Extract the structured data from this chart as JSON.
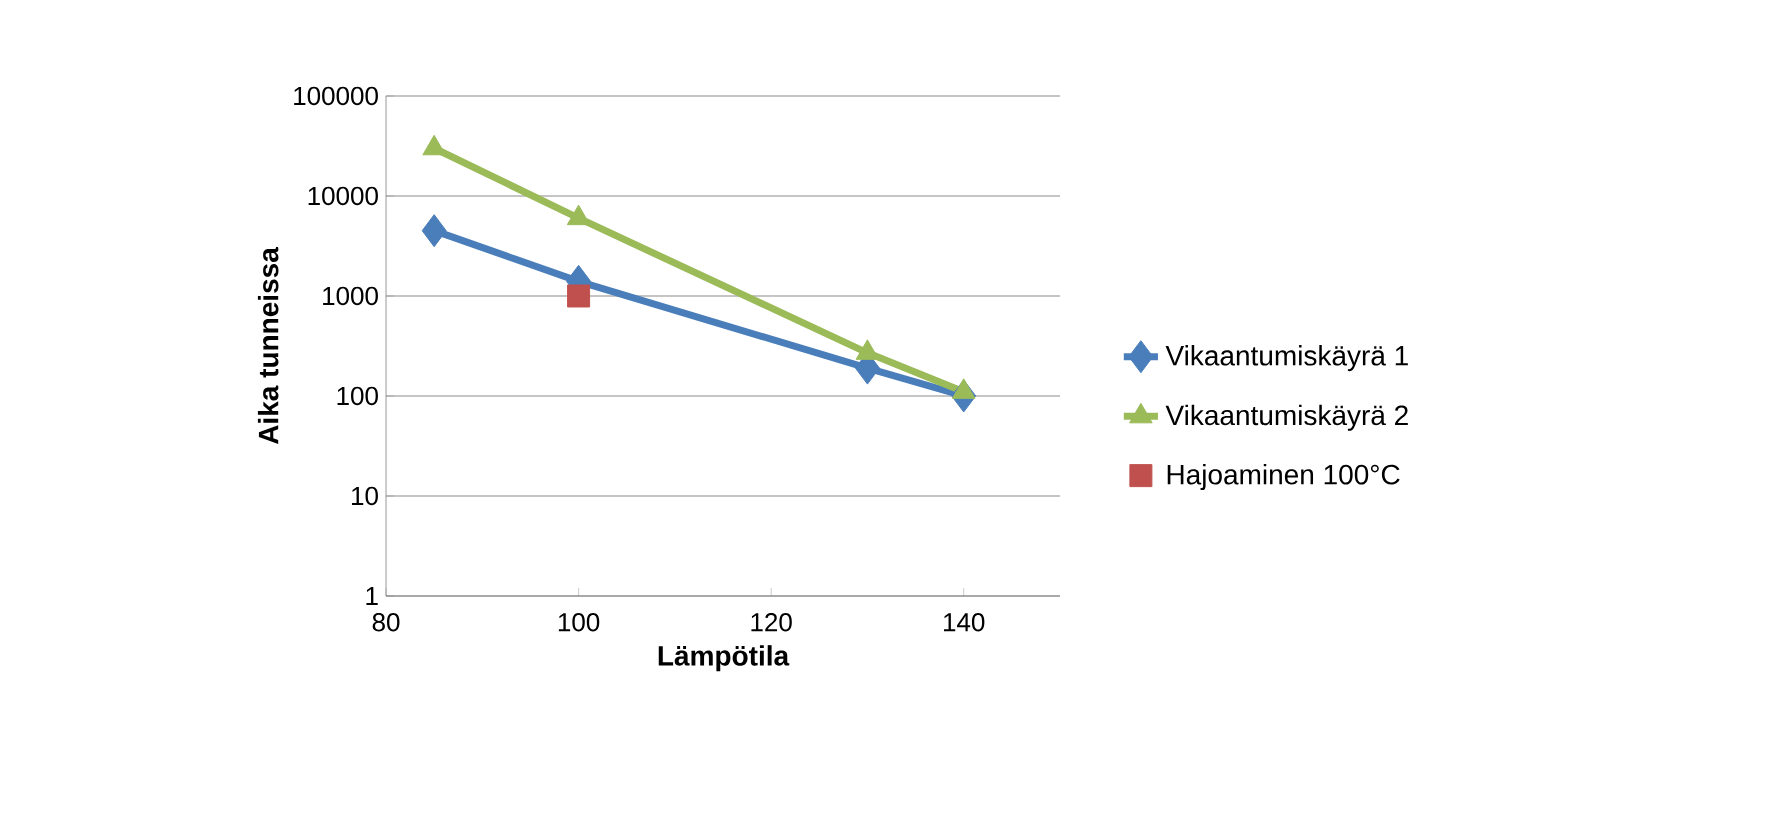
{
  "chart_data": {
    "type": "line",
    "xlabel": "Lämpötila",
    "ylabel": "Aika tunneissa",
    "xlim": [
      80,
      150
    ],
    "xticks": [
      80,
      100,
      120,
      140
    ],
    "ylim": [
      1,
      100000
    ],
    "yticks": [
      1,
      10,
      100,
      1000,
      10000,
      100000
    ],
    "log": "y",
    "grid": "y",
    "legend": "right",
    "series": [
      {
        "name": "Vikaantumiskäyrä 1",
        "color": "#4a7ebb",
        "marker": "diamond",
        "x": [
          85,
          100,
          130,
          140
        ],
        "values": [
          4500,
          1400,
          190,
          100
        ]
      },
      {
        "name": "Vikaantumiskäyrä 2",
        "color": "#9bbb59",
        "marker": "triangle",
        "x": [
          85,
          100,
          130,
          140
        ],
        "values": [
          30000,
          6000,
          270,
          110
        ]
      },
      {
        "name": "Hajoaminen 100°C",
        "type": "scatter",
        "color": "#c0504d",
        "marker": "square",
        "x": [
          100
        ],
        "values": [
          1000
        ]
      }
    ]
  }
}
